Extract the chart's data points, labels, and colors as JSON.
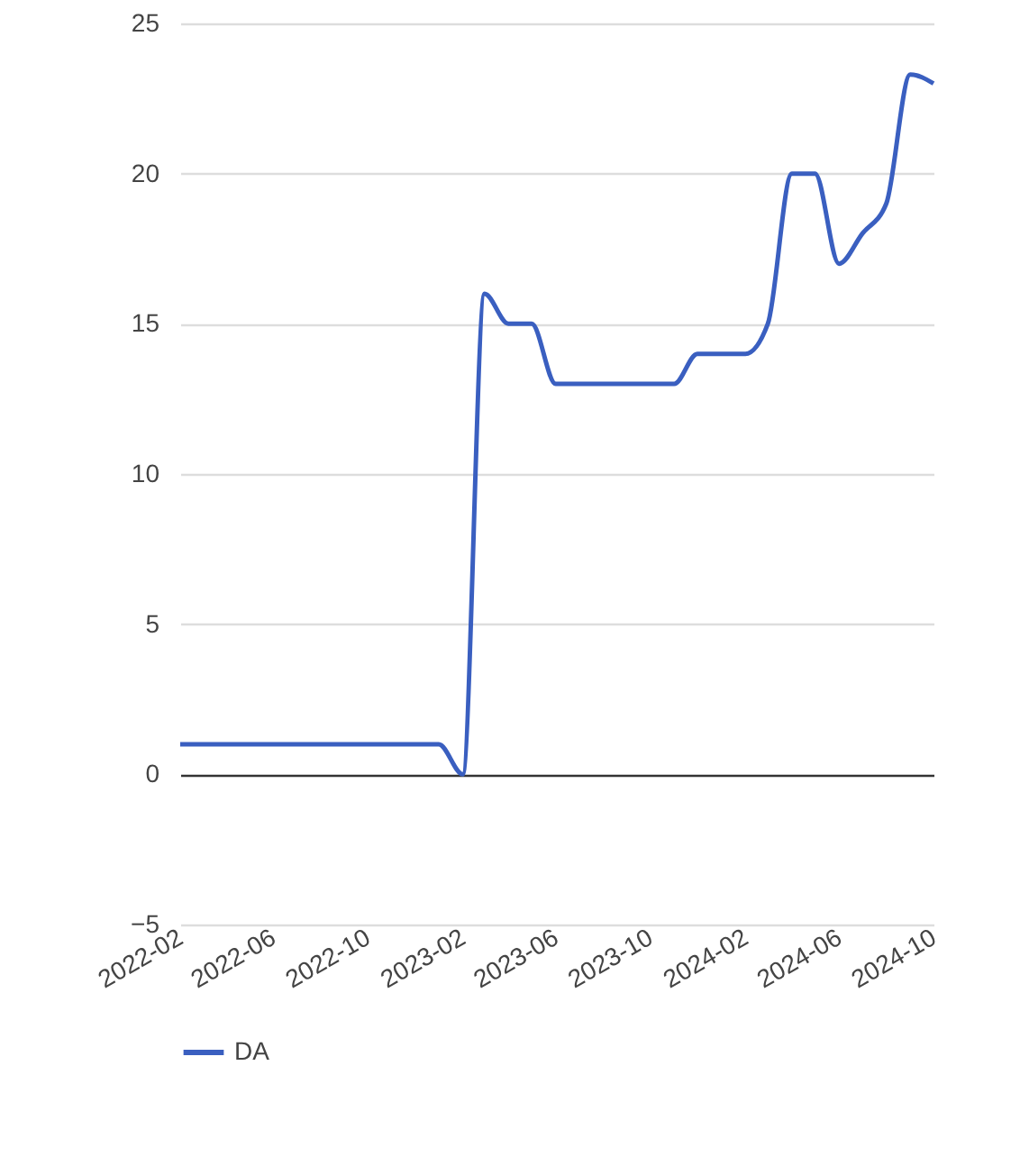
{
  "chart_data": {
    "type": "line",
    "x": [
      "2022-02",
      "2022-03",
      "2022-04",
      "2022-05",
      "2022-06",
      "2022-07",
      "2022-08",
      "2022-09",
      "2022-10",
      "2022-11",
      "2022-12",
      "2023-01",
      "2023-02",
      "2023-03",
      "2023-04",
      "2023-05",
      "2023-06",
      "2023-07",
      "2023-08",
      "2023-09",
      "2023-10",
      "2023-11",
      "2023-12",
      "2024-01",
      "2024-02",
      "2024-03",
      "2024-04",
      "2024-05",
      "2024-06",
      "2024-07",
      "2024-08",
      "2024-09",
      "2024-10"
    ],
    "series": [
      {
        "name": "DA",
        "color": "#3a5fc0",
        "values": [
          1,
          1,
          1,
          1,
          1,
          1,
          1,
          1,
          1,
          1,
          1,
          1,
          0,
          16,
          15,
          15,
          13,
          13,
          13,
          13,
          13,
          13,
          14,
          14,
          14,
          15,
          20,
          20,
          17,
          18,
          19,
          23.3,
          23
        ]
      }
    ],
    "xlim": [
      "2022-02",
      "2024-10"
    ],
    "xticks": [
      "2022-02",
      "2022-06",
      "2022-10",
      "2023-02",
      "2023-06",
      "2023-10",
      "2024-02",
      "2024-06",
      "2024-10"
    ],
    "ylim": [
      -5,
      25
    ],
    "yticks": [
      -5,
      0,
      5,
      10,
      15,
      20,
      25
    ],
    "grid": "y",
    "legend": "bottom",
    "marker": "none",
    "line_style": "solid"
  }
}
